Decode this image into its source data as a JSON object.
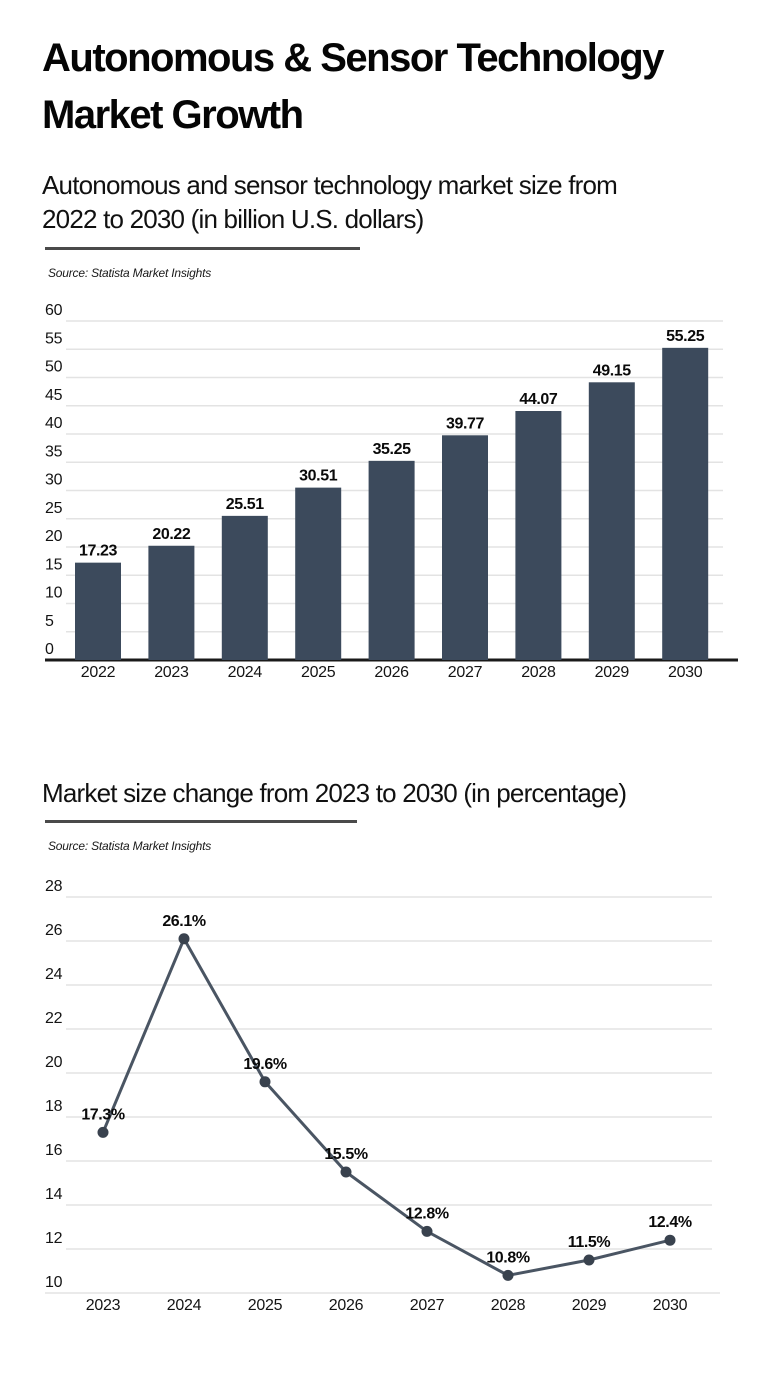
{
  "page": {
    "title": "Autonomous & Sensor Technology Market Growth",
    "title_lines": [
      "Autonomous & Sensor Technology",
      "Market Growth"
    ]
  },
  "colors": {
    "bar_fill": "#3c4a5c",
    "line_stroke": "#4a5563",
    "point_fill": "#39424e",
    "gridline": "#e3e3e3",
    "axis_line": "#1a1a1a",
    "divider": "#4a4a4a",
    "text": "#141414"
  },
  "chart_data": [
    {
      "type": "bar",
      "title": "Autonomous and sensor technology market size from 2022 to 2030 (in billion U.S. dollars)",
      "title_lines": [
        "Autonomous and sensor technology market size from",
        "2022 to 2030 (in billion U.S. dollars)"
      ],
      "source": "Source: Statista Market Insights",
      "categories": [
        "2022",
        "2023",
        "2024",
        "2025",
        "2026",
        "2027",
        "2028",
        "2029",
        "2030"
      ],
      "values": [
        17.23,
        20.22,
        25.51,
        30.51,
        35.25,
        39.77,
        44.07,
        49.15,
        55.25
      ],
      "value_labels": [
        "17.23",
        "20.22",
        "25.51",
        "30.51",
        "35.25",
        "39.77",
        "44.07",
        "49.15",
        "55.25"
      ],
      "xlabel": "",
      "ylabel": "",
      "ylim": [
        0,
        60
      ],
      "ytick_step": 5,
      "grid": true,
      "legend": false
    },
    {
      "type": "line",
      "title": "Market size change from 2023 to 2030 (in percentage)",
      "source": "Source: Statista Market Insights",
      "categories": [
        "2023",
        "2024",
        "2025",
        "2026",
        "2027",
        "2028",
        "2029",
        "2030"
      ],
      "values": [
        17.3,
        26.1,
        19.6,
        15.5,
        12.8,
        10.8,
        11.5,
        12.4
      ],
      "value_labels": [
        "17.3%",
        "26.1%",
        "19.6%",
        "15.5%",
        "12.8%",
        "10.8%",
        "11.5%",
        "12.4%"
      ],
      "xlabel": "",
      "ylabel": "",
      "ylim": [
        10,
        28
      ],
      "ytick_step": 2,
      "grid": true,
      "legend": false
    }
  ]
}
